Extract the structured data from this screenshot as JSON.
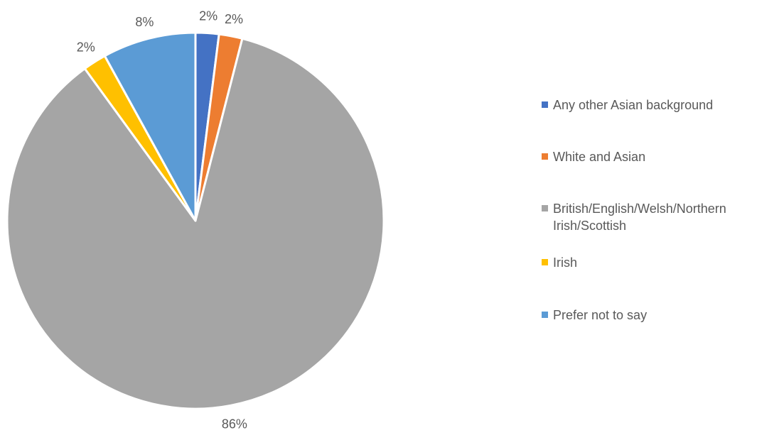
{
  "chart_data": {
    "type": "pie",
    "title": "",
    "categories": [
      "Any other Asian background",
      "White and Asian",
      "British/English/Welsh/Northern Irish/Scottish",
      "Irish",
      "Prefer not to say"
    ],
    "values": [
      2,
      2,
      86,
      2,
      8
    ],
    "data_labels": [
      "2%",
      "2%",
      "86%",
      "2%",
      "8%"
    ],
    "colors": [
      "#4472C4",
      "#ED7D31",
      "#A5A5A5",
      "#FFC000",
      "#5B9BD5"
    ],
    "legend_position": "right",
    "start_angle": "12 o'clock",
    "direction": "clockwise"
  },
  "legend": {
    "items": [
      {
        "label": "Any other Asian background",
        "color": "#4472C4"
      },
      {
        "label": "White and Asian",
        "color": "#ED7D31"
      },
      {
        "label": "British/English/Welsh/Northern Irish/Scottish",
        "color": "#A5A5A5"
      },
      {
        "label": "Irish",
        "color": "#FFC000"
      },
      {
        "label": "Prefer not to say",
        "color": "#5B9BD5"
      }
    ]
  }
}
